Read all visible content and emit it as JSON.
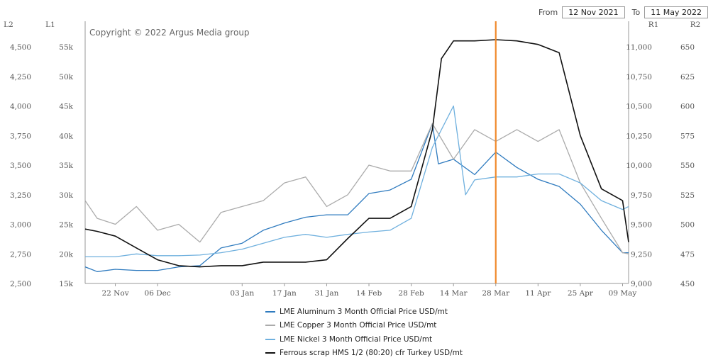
{
  "header": {
    "from_label": "From",
    "from_value": "12 Nov 2021",
    "to_label": "To",
    "to_value": "11 May 2022"
  },
  "copyright": "Copyright © 2022 Argus Media group",
  "colors": {
    "aluminum": "#2f7bbf",
    "copper": "#ababab",
    "nickel": "#6fb0de",
    "scrap": "#111111",
    "marker": "#f08a2c",
    "axis": "#9a9a9a",
    "text": "#555555"
  },
  "chart_data": {
    "type": "line",
    "grid": false,
    "legend_position": "bottom",
    "x_start": "2021-11-12",
    "x_end": "2022-05-11",
    "x_ticks": [
      {
        "date": "2021-11-22",
        "label": "22 Nov"
      },
      {
        "date": "2021-12-06",
        "label": "06 Dec"
      },
      {
        "date": "2022-01-03",
        "label": "03 Jan"
      },
      {
        "date": "2022-01-17",
        "label": "17 Jan"
      },
      {
        "date": "2022-01-31",
        "label": "31 Jan"
      },
      {
        "date": "2022-02-14",
        "label": "14 Feb"
      },
      {
        "date": "2022-02-28",
        "label": "28 Feb"
      },
      {
        "date": "2022-03-14",
        "label": "14 Mar"
      },
      {
        "date": "2022-03-28",
        "label": "28 Mar"
      },
      {
        "date": "2022-04-11",
        "label": "11 Apr"
      },
      {
        "date": "2022-04-25",
        "label": "25 Apr"
      },
      {
        "date": "2022-05-09",
        "label": "09 May"
      }
    ],
    "marker_date": "2022-03-28",
    "axes": {
      "L2": {
        "label": "L2",
        "range": [
          2500,
          4500
        ],
        "ticks": [
          "2,500",
          "2,750",
          "3,000",
          "3,250",
          "3,500",
          "3,750",
          "4,000",
          "4,250",
          "4,500"
        ]
      },
      "L1": {
        "label": "L1",
        "range": [
          15000,
          55000
        ],
        "ticks": [
          "15k",
          "20k",
          "25k",
          "30k",
          "35k",
          "40k",
          "45k",
          "50k",
          "55k"
        ]
      },
      "R1": {
        "label": "R1",
        "range": [
          9000,
          11000
        ],
        "ticks": [
          "9,000",
          "9,250",
          "9,500",
          "9,750",
          "10,000",
          "10,250",
          "10,500",
          "10,750",
          "11,000"
        ]
      },
      "R2": {
        "label": "R2",
        "range": [
          450,
          650
        ],
        "ticks": [
          "450",
          "475",
          "500",
          "525",
          "550",
          "575",
          "600",
          "625",
          "650"
        ]
      }
    },
    "series": [
      {
        "name": "LME Aluminum 3 Month Official Price USD/mt",
        "key": "aluminum",
        "axis": "L2",
        "points": [
          [
            "2021-11-12",
            2640
          ],
          [
            "2021-11-16",
            2600
          ],
          [
            "2021-11-22",
            2620
          ],
          [
            "2021-11-29",
            2610
          ],
          [
            "2021-12-06",
            2610
          ],
          [
            "2021-12-13",
            2640
          ],
          [
            "2021-12-20",
            2650
          ],
          [
            "2021-12-27",
            2800
          ],
          [
            "2022-01-03",
            2840
          ],
          [
            "2022-01-10",
            2950
          ],
          [
            "2022-01-17",
            3010
          ],
          [
            "2022-01-24",
            3060
          ],
          [
            "2022-01-31",
            3080
          ],
          [
            "2022-02-07",
            3080
          ],
          [
            "2022-02-14",
            3260
          ],
          [
            "2022-02-21",
            3290
          ],
          [
            "2022-02-28",
            3380
          ],
          [
            "2022-03-07",
            3850
          ],
          [
            "2022-03-09",
            3510
          ],
          [
            "2022-03-14",
            3550
          ],
          [
            "2022-03-21",
            3420
          ],
          [
            "2022-03-28",
            3610
          ],
          [
            "2022-04-04",
            3480
          ],
          [
            "2022-04-11",
            3380
          ],
          [
            "2022-04-18",
            3320
          ],
          [
            "2022-04-25",
            3170
          ],
          [
            "2022-05-02",
            2950
          ],
          [
            "2022-05-09",
            2760
          ],
          [
            "2022-05-11",
            2760
          ]
        ]
      },
      {
        "name": "LME Copper 3 Month Official Price USD/mt",
        "key": "copper",
        "axis": "R1",
        "points": [
          [
            "2021-11-12",
            9700
          ],
          [
            "2021-11-16",
            9550
          ],
          [
            "2021-11-22",
            9500
          ],
          [
            "2021-11-29",
            9650
          ],
          [
            "2021-12-06",
            9450
          ],
          [
            "2021-12-13",
            9500
          ],
          [
            "2021-12-20",
            9350
          ],
          [
            "2021-12-27",
            9600
          ],
          [
            "2022-01-03",
            9650
          ],
          [
            "2022-01-10",
            9700
          ],
          [
            "2022-01-17",
            9850
          ],
          [
            "2022-01-24",
            9900
          ],
          [
            "2022-01-31",
            9650
          ],
          [
            "2022-02-07",
            9750
          ],
          [
            "2022-02-14",
            10000
          ],
          [
            "2022-02-21",
            9950
          ],
          [
            "2022-02-28",
            9950
          ],
          [
            "2022-03-07",
            10350
          ],
          [
            "2022-03-14",
            10050
          ],
          [
            "2022-03-21",
            10300
          ],
          [
            "2022-03-28",
            10200
          ],
          [
            "2022-04-04",
            10300
          ],
          [
            "2022-04-11",
            10200
          ],
          [
            "2022-04-18",
            10300
          ],
          [
            "2022-04-25",
            9850
          ],
          [
            "2022-05-02",
            9550
          ],
          [
            "2022-05-09",
            9260
          ],
          [
            "2022-05-11",
            9250
          ]
        ]
      },
      {
        "name": "LME Nickel 3 Month Official Price USD/mt",
        "key": "nickel",
        "axis": "L1",
        "points": [
          [
            "2021-11-12",
            19500
          ],
          [
            "2021-11-22",
            19500
          ],
          [
            "2021-11-29",
            20000
          ],
          [
            "2021-12-06",
            19700
          ],
          [
            "2021-12-13",
            19700
          ],
          [
            "2021-12-20",
            19800
          ],
          [
            "2021-12-27",
            20200
          ],
          [
            "2022-01-03",
            20800
          ],
          [
            "2022-01-10",
            21800
          ],
          [
            "2022-01-17",
            22800
          ],
          [
            "2022-01-24",
            23300
          ],
          [
            "2022-01-31",
            22800
          ],
          [
            "2022-02-07",
            23300
          ],
          [
            "2022-02-14",
            23700
          ],
          [
            "2022-02-21",
            24000
          ],
          [
            "2022-02-28",
            26000
          ],
          [
            "2022-03-07",
            38000
          ],
          [
            "2022-03-14",
            45000
          ],
          [
            "2022-03-18",
            30000
          ],
          [
            "2022-03-21",
            32500
          ],
          [
            "2022-03-28",
            33000
          ],
          [
            "2022-04-04",
            33000
          ],
          [
            "2022-04-11",
            33500
          ],
          [
            "2022-04-18",
            33500
          ],
          [
            "2022-04-25",
            32000
          ],
          [
            "2022-05-02",
            29000
          ],
          [
            "2022-05-09",
            27500
          ],
          [
            "2022-05-11",
            28000
          ]
        ]
      },
      {
        "name": "Ferrous scrap HMS 1/2 (80:20) cfr Turkey USD/mt",
        "key": "scrap",
        "axis": "R2",
        "points": [
          [
            "2021-11-12",
            496
          ],
          [
            "2021-11-16",
            494
          ],
          [
            "2021-11-22",
            490
          ],
          [
            "2021-11-29",
            480
          ],
          [
            "2021-12-06",
            470
          ],
          [
            "2021-12-13",
            465
          ],
          [
            "2021-12-20",
            464
          ],
          [
            "2021-12-27",
            465
          ],
          [
            "2022-01-03",
            465
          ],
          [
            "2022-01-10",
            468
          ],
          [
            "2022-01-17",
            468
          ],
          [
            "2022-01-24",
            468
          ],
          [
            "2022-01-31",
            470
          ],
          [
            "2022-02-07",
            488
          ],
          [
            "2022-02-14",
            505
          ],
          [
            "2022-02-21",
            505
          ],
          [
            "2022-02-28",
            515
          ],
          [
            "2022-03-07",
            580
          ],
          [
            "2022-03-10",
            640
          ],
          [
            "2022-03-14",
            655
          ],
          [
            "2022-03-21",
            655
          ],
          [
            "2022-03-28",
            656
          ],
          [
            "2022-04-04",
            655
          ],
          [
            "2022-04-11",
            652
          ],
          [
            "2022-04-18",
            645
          ],
          [
            "2022-04-25",
            575
          ],
          [
            "2022-05-02",
            530
          ],
          [
            "2022-05-09",
            520
          ],
          [
            "2022-05-11",
            485
          ]
        ]
      }
    ]
  }
}
